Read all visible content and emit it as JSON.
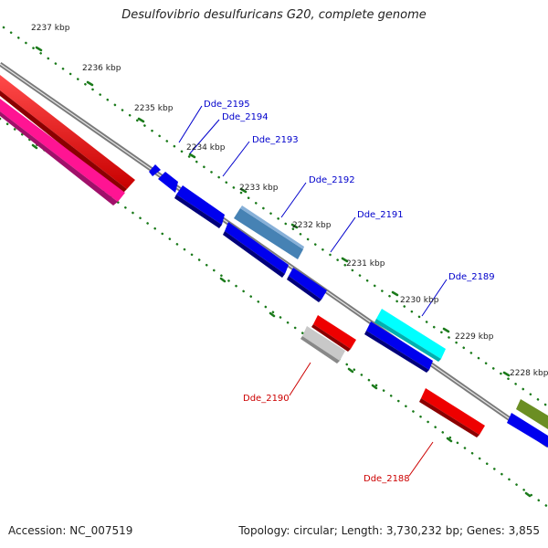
{
  "title": "Desulfovibrio desulfuricans G20, complete genome",
  "footer": {
    "accession_label": "Accession:",
    "accession": "NC_007519",
    "topology_label": "Topology:",
    "topology": "circular",
    "length_label": "Length:",
    "length": "3,730,232 bp",
    "genes_label": "Genes:",
    "genes": "3,855"
  },
  "colors": {
    "forward_label": "#0000cc",
    "reverse_label": "#cc0000",
    "tick": "#1a7a1a",
    "backbone": "#808080"
  },
  "ticks": [
    {
      "label": "2237 kbp"
    },
    {
      "label": "2236 kbp"
    },
    {
      "label": "2235 kbp"
    },
    {
      "label": "2234 kbp"
    },
    {
      "label": "2233 kbp"
    },
    {
      "label": "2232 kbp"
    },
    {
      "label": "2231 kbp"
    },
    {
      "label": "2230 kbp"
    },
    {
      "label": "2229 kbp"
    },
    {
      "label": "2228 kbp"
    }
  ],
  "genes": [
    {
      "label": "Dde_2195",
      "strand": "forward",
      "color": "#0000ee"
    },
    {
      "label": "Dde_2194",
      "strand": "forward",
      "color": "#0000ee"
    },
    {
      "label": "Dde_2193",
      "strand": "forward",
      "color": "#0000ee"
    },
    {
      "label": "Dde_2192",
      "strand": "forward",
      "color": "#4682b4"
    },
    {
      "label": "Dde_2191",
      "strand": "forward",
      "color": "#0000ee"
    },
    {
      "label": "Dde_2189",
      "strand": "forward",
      "color": "#00ffff"
    },
    {
      "label": "Dde_2190",
      "strand": "reverse",
      "color": "#bbbbbb"
    },
    {
      "label": "Dde_2188",
      "strand": "reverse",
      "color": "#ee0000"
    }
  ]
}
